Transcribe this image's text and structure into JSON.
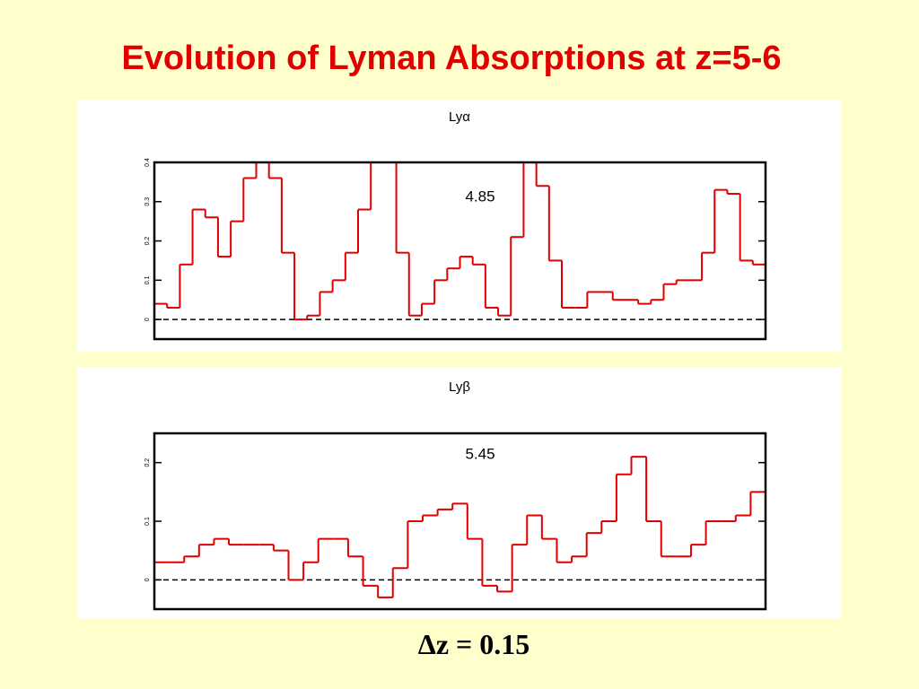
{
  "slide": {
    "title": "Evolution of Lyman Absorptions at z=5-6",
    "footer": "Δz = 0.15"
  },
  "chart_data": [
    {
      "type": "step",
      "title": "Lyα",
      "annotation": "4.85",
      "color": "#e00000",
      "ylim": [
        -0.05,
        0.4
      ],
      "yticks": [
        0,
        0.1,
        0.2,
        0.3,
        0.4
      ],
      "values": [
        0.04,
        0.03,
        0.14,
        0.28,
        0.26,
        0.16,
        0.25,
        0.36,
        0.4,
        0.36,
        0.17,
        0.0,
        0.01,
        0.07,
        0.1,
        0.17,
        0.28,
        0.4,
        0.4,
        0.17,
        0.01,
        0.04,
        0.1,
        0.13,
        0.16,
        0.14,
        0.03,
        0.01,
        0.21,
        0.4,
        0.34,
        0.15,
        0.03,
        0.03,
        0.07,
        0.07,
        0.05,
        0.05,
        0.04,
        0.05,
        0.09,
        0.1,
        0.1,
        0.17,
        0.33,
        0.32,
        0.15,
        0.14
      ]
    },
    {
      "type": "step",
      "title": "Lyβ",
      "annotation": "5.45",
      "color": "#e00000",
      "ylim": [
        -0.05,
        0.25
      ],
      "yticks": [
        0,
        0.1,
        0.2
      ],
      "values": [
        0.03,
        0.03,
        0.04,
        0.06,
        0.07,
        0.06,
        0.06,
        0.06,
        0.05,
        0.0,
        0.03,
        0.07,
        0.07,
        0.04,
        -0.01,
        -0.03,
        0.02,
        0.1,
        0.11,
        0.12,
        0.13,
        0.07,
        -0.01,
        -0.02,
        0.06,
        0.11,
        0.07,
        0.03,
        0.04,
        0.08,
        0.1,
        0.18,
        0.21,
        0.1,
        0.04,
        0.04,
        0.06,
        0.1,
        0.1,
        0.11,
        0.15
      ]
    }
  ]
}
